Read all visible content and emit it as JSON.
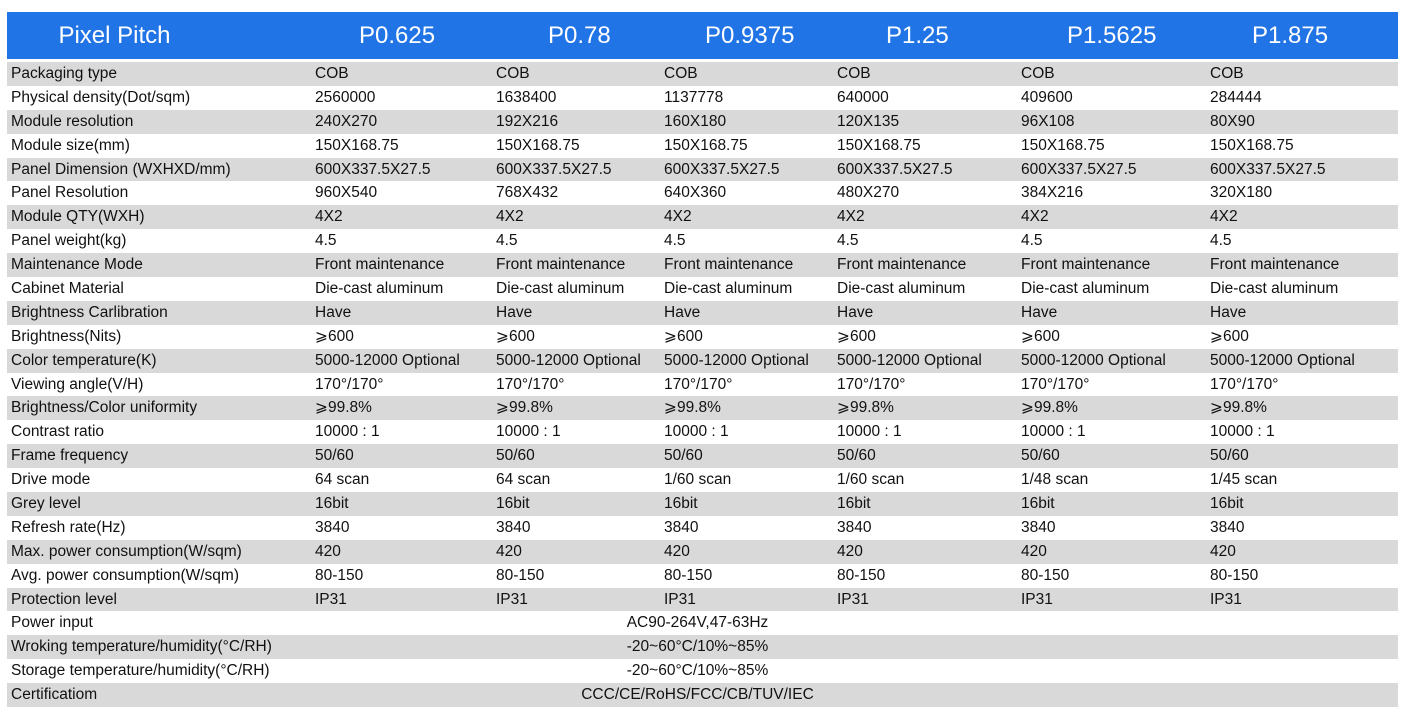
{
  "table": {
    "header": {
      "title": "Pixel Pitch",
      "columns": [
        "P0.625",
        "P0.78",
        "P0.9375",
        "P1.25",
        "P1.5625",
        "P1.875"
      ]
    },
    "rows": [
      {
        "label": "Packaging type",
        "values": [
          "COB",
          "COB",
          "COB",
          "COB",
          "COB",
          "COB"
        ]
      },
      {
        "label": "Physical density(Dot/sqm)",
        "values": [
          "2560000",
          "1638400",
          "1137778",
          "640000",
          "409600",
          "284444"
        ]
      },
      {
        "label": "Module resolution",
        "values": [
          "240X270",
          "192X216",
          "160X180",
          "120X135",
          "96X108",
          "80X90"
        ]
      },
      {
        "label": "Module size(mm)",
        "values": [
          "150X168.75",
          "150X168.75",
          "150X168.75",
          "150X168.75",
          "150X168.75",
          "150X168.75"
        ]
      },
      {
        "label": "Panel Dimension (WXHXD/mm)",
        "values": [
          "600X337.5X27.5",
          "600X337.5X27.5",
          "600X337.5X27.5",
          "600X337.5X27.5",
          "600X337.5X27.5",
          "600X337.5X27.5"
        ]
      },
      {
        "label": "Panel Resolution",
        "values": [
          "960X540",
          "768X432",
          "640X360",
          "480X270",
          "384X216",
          "320X180"
        ]
      },
      {
        "label": "Module QTY(WXH)",
        "values": [
          "4X2",
          "4X2",
          "4X2",
          "4X2",
          "4X2",
          "4X2"
        ]
      },
      {
        "label": "Panel weight(kg)",
        "values": [
          "4.5",
          "4.5",
          "4.5",
          "4.5",
          "4.5",
          "4.5"
        ]
      },
      {
        "label": "Maintenance Mode",
        "values": [
          "Front maintenance",
          "Front maintenance",
          "Front maintenance",
          "Front maintenance",
          "Front maintenance",
          "Front maintenance"
        ]
      },
      {
        "label": "Cabinet Material",
        "values": [
          "Die-cast aluminum",
          "Die-cast aluminum",
          "Die-cast aluminum",
          "Die-cast aluminum",
          "Die-cast aluminum",
          "Die-cast aluminum"
        ]
      },
      {
        "label": "Brightness Carlibration",
        "values": [
          "Have",
          "Have",
          "Have",
          "Have",
          "Have",
          "Have"
        ]
      },
      {
        "label": "Brightness(Nits)",
        "values": [
          "⩾600",
          "⩾600",
          "⩾600",
          "⩾600",
          "⩾600",
          "⩾600"
        ]
      },
      {
        "label": "Color temperature(K)",
        "values": [
          "5000-12000 Optional",
          "5000-12000 Optional",
          "5000-12000 Optional",
          "5000-12000 Optional",
          "5000-12000 Optional",
          "5000-12000 Optional"
        ]
      },
      {
        "label": "Viewing angle(V/H)",
        "values": [
          "170°/170°",
          "170°/170°",
          "170°/170°",
          "170°/170°",
          "170°/170°",
          "170°/170°"
        ]
      },
      {
        "label": "Brightness/Color uniformity",
        "values": [
          "⩾99.8%",
          "⩾99.8%",
          "⩾99.8%",
          "⩾99.8%",
          "⩾99.8%",
          "⩾99.8%"
        ]
      },
      {
        "label": "Contrast ratio",
        "values": [
          "10000 : 1",
          "10000 : 1",
          "10000 : 1",
          "10000 : 1",
          "10000 : 1",
          "10000 : 1"
        ]
      },
      {
        "label": "Frame frequency",
        "values": [
          "50/60",
          "50/60",
          "50/60",
          "50/60",
          "50/60",
          "50/60"
        ]
      },
      {
        "label": "Drive mode",
        "values": [
          "64 scan",
          "64 scan",
          "1/60 scan",
          "1/60  scan",
          "1/48  scan",
          "1/45  scan"
        ]
      },
      {
        "label": "Grey level",
        "values": [
          "16bit",
          "16bit",
          "16bit",
          "16bit",
          "16bit",
          "16bit"
        ]
      },
      {
        "label": "Refresh rate(Hz)",
        "values": [
          "3840",
          "3840",
          "3840",
          "3840",
          "3840",
          "3840"
        ]
      },
      {
        "label": "Max. power consumption(W/sqm)",
        "values": [
          "420",
          "420",
          "420",
          "420",
          "420",
          "420"
        ]
      },
      {
        "label": "Avg. power consumption(W/sqm)",
        "values": [
          "80-150",
          "80-150",
          "80-150",
          "80-150",
          "80-150",
          "80-150"
        ]
      },
      {
        "label": "Protection level",
        "values": [
          "IP31",
          "IP31",
          "IP31",
          "IP31",
          "IP31",
          "IP31"
        ]
      },
      {
        "label": "Power input",
        "merged": "AC90-264V,47-63Hz"
      },
      {
        "label": "Wroking temperature/humidity(°C/RH)",
        "merged": "-20~60°C/10%~85%"
      },
      {
        "label": "Storage  temperature/humidity(°C/RH)",
        "merged": "-20~60°C/10%~85%"
      },
      {
        "label": "Certificatiom",
        "merged": "CCC/CE/RoHS/FCC/CB/TUV/IEC"
      }
    ]
  }
}
